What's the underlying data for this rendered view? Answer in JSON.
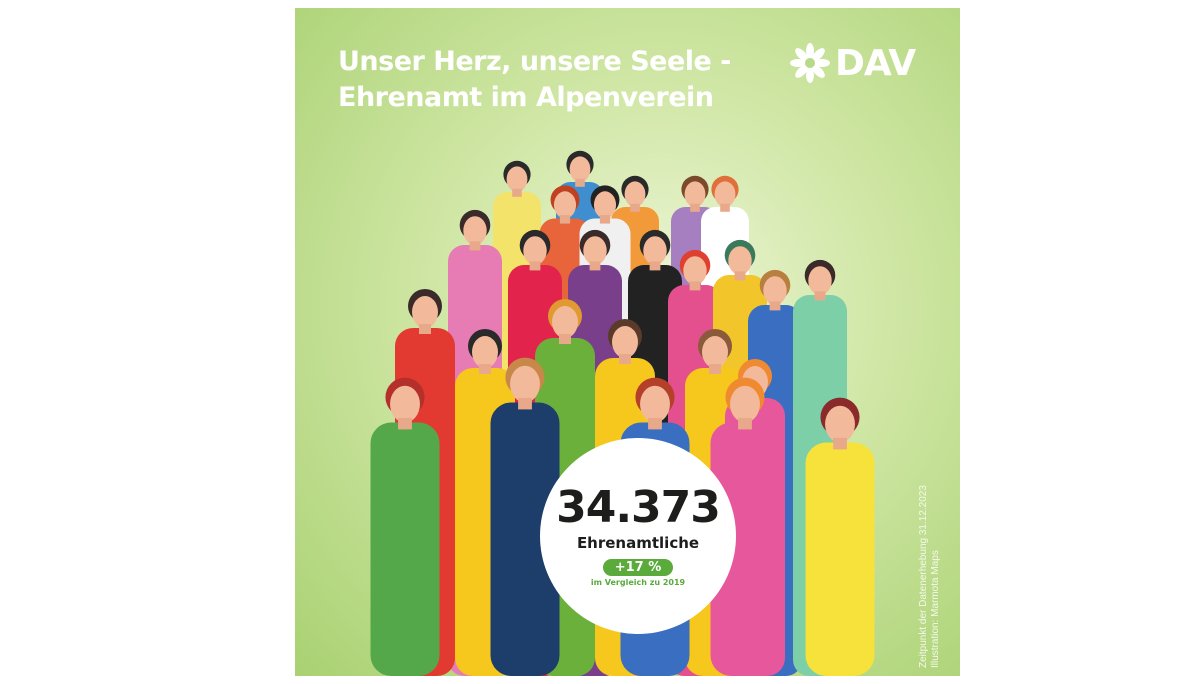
{
  "poster": {
    "title_line1": "Unser Herz, unsere Seele -",
    "title_line2": "Ehrenamt im Alpenverein",
    "logo_text": "DAV",
    "logo_icon": "edelweiss-icon",
    "stat": {
      "value": "34.373",
      "label": "Ehrenamtliche",
      "change": "+17 %",
      "comparison": "im Vergleich zu 2019"
    },
    "credits_line1": "Zeitpunkt der Datenerhebung 31.12.2023",
    "credits_line2": "Illustration: Marmota Maps",
    "colors": {
      "accent_green": "#5aaa3c",
      "background_green": "#a9d172"
    }
  }
}
